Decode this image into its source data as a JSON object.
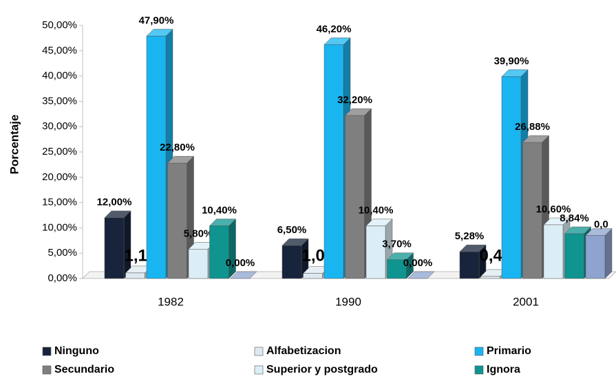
{
  "chart_data": {
    "type": "bar3d",
    "ylabel": "Porcentaje",
    "categories": [
      "1982",
      "1990",
      "2001"
    ],
    "ylim": [
      0,
      50
    ],
    "yticks": [
      {
        "value": 0,
        "label": "0,00%"
      },
      {
        "value": 5,
        "label": "5,00%"
      },
      {
        "value": 10,
        "label": "10,00%"
      },
      {
        "value": 15,
        "label": "15,00%"
      },
      {
        "value": 20,
        "label": "20,00%"
      },
      {
        "value": 25,
        "label": "25,00%"
      },
      {
        "value": 30,
        "label": "30,00%"
      },
      {
        "value": 35,
        "label": "35,00%"
      },
      {
        "value": 40,
        "label": "40,00%"
      },
      {
        "value": 45,
        "label": "45,00%"
      },
      {
        "value": 50,
        "label": "50,00%"
      }
    ],
    "series": [
      {
        "name": "Ninguno",
        "color": "#17243b",
        "values": [
          12,
          6.5,
          5.28
        ],
        "value_labels": [
          "12,00%",
          "6,50%",
          "5,28%"
        ]
      },
      {
        "name": "Alfabetizacion",
        "color": "#dde9f0",
        "values": [
          1.1,
          1,
          0.41
        ],
        "value_labels": [
          "1,10%",
          "1,00%",
          "0,41%"
        ]
      },
      {
        "name": "Primario",
        "color": "#19b5f0",
        "values": [
          47.9,
          46.2,
          39.9
        ],
        "value_labels": [
          "47,90%",
          "46,20%",
          "39,90%"
        ]
      },
      {
        "name": "Secundario",
        "color": "#7f7f7f",
        "values": [
          22.8,
          32.2,
          26.88
        ],
        "value_labels": [
          "22,80%",
          "32,20%",
          "26,88%"
        ]
      },
      {
        "name": "Superior y postgrado",
        "color": "#dbeef7",
        "values": [
          5.8,
          10.4,
          10.6
        ],
        "value_labels": [
          "5,80%",
          "10,40%",
          "10,60%"
        ]
      },
      {
        "name": "Ignora",
        "color": "#0f9490",
        "values": [
          10.4,
          3.7,
          8.84
        ],
        "value_labels": [
          "10,40%",
          "3,70%",
          "8,84%"
        ]
      },
      {
        "color": "#8ea3cf",
        "values": [
          0,
          0,
          8.5
        ],
        "value_labels": [
          "0,00%",
          "0,00%",
          null
        ]
      }
    ],
    "annotations": [
      {
        "text": "0,0"
      }
    ]
  }
}
